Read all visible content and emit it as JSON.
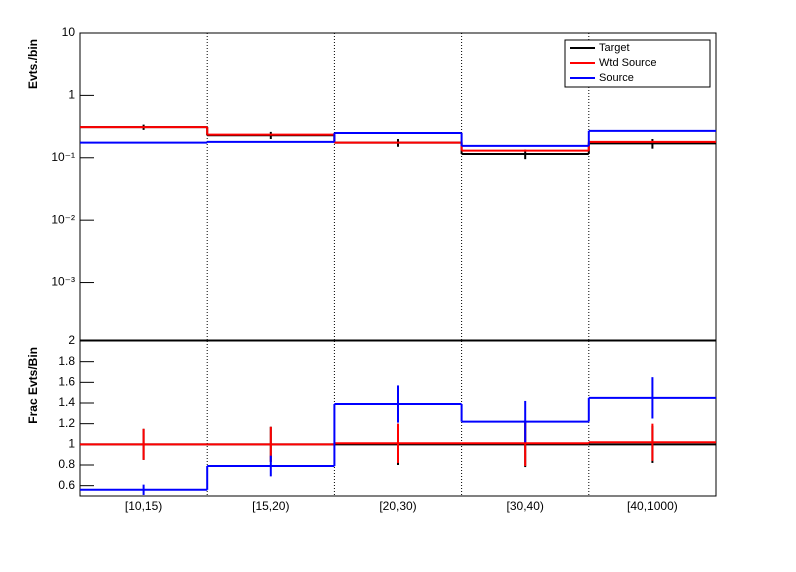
{
  "chart_data": [
    {
      "type": "step",
      "ylabel": "Evts./bin",
      "log_scale": true,
      "categories": [
        "[10,15)",
        "[15,20)",
        "[20,30)",
        "[30,40)",
        "[40,1000)"
      ],
      "ylim": [
        0.00012,
        10
      ],
      "yticks": [
        {
          "value": 0.001,
          "label": "10⁻³"
        },
        {
          "value": 0.01,
          "label": "10⁻²"
        },
        {
          "value": 0.1,
          "label": "10⁻¹"
        },
        1,
        10
      ],
      "grid_x": true,
      "legend": "top-right",
      "series": [
        {
          "name": "Target",
          "color": "#000000",
          "values": [
            0.31,
            0.23,
            0.175,
            0.115,
            0.17
          ],
          "errors": [
            0.03,
            0.03,
            0.025,
            0.02,
            0.03
          ]
        },
        {
          "name": "Wtd Source",
          "color": "#ff0000",
          "values": [
            0.31,
            0.235,
            0.175,
            0.13,
            0.18
          ]
        },
        {
          "name": "Source",
          "color": "#0000ff",
          "values": [
            0.175,
            0.18,
            0.25,
            0.155,
            0.27
          ]
        }
      ]
    },
    {
      "type": "step",
      "ylabel": "Frac Evts/Bin",
      "log_scale": false,
      "categories": [
        "[10,15)",
        "[15,20)",
        "[20,30)",
        "[30,40)",
        "[40,1000)"
      ],
      "ylim": [
        0.5,
        2
      ],
      "yticks": [
        0.6,
        0.8,
        1,
        1.2,
        1.4,
        1.6,
        1.8,
        2
      ],
      "grid_x": true,
      "series": [
        {
          "color": "#000000",
          "values": [
            1,
            1,
            1,
            1,
            1
          ],
          "errors": [
            0.15,
            0.17,
            0.2,
            0.22,
            0.18
          ]
        },
        {
          "color": "#ff0000",
          "values": [
            1.0,
            1.0,
            1.01,
            1.01,
            1.02
          ],
          "errors": [
            0.15,
            0.17,
            0.19,
            0.22,
            0.18
          ]
        },
        {
          "color": "#0000ff",
          "values": [
            0.56,
            0.79,
            1.39,
            1.22,
            1.45
          ],
          "errors": [
            0.05,
            0.1,
            0.18,
            0.2,
            0.2
          ]
        }
      ]
    }
  ]
}
